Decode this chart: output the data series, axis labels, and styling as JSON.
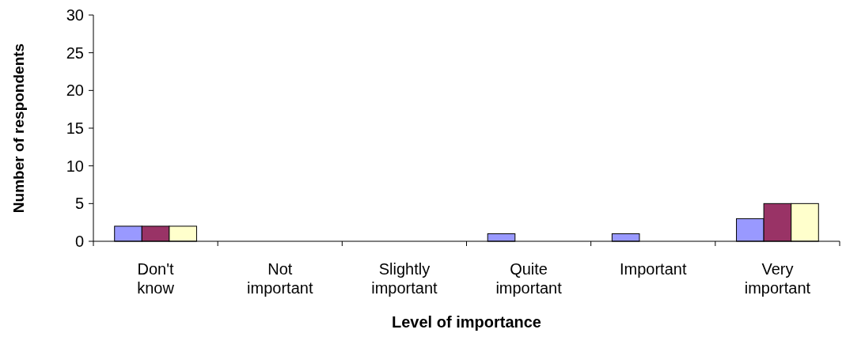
{
  "chart_data": {
    "type": "bar",
    "xlabel": "Level of importance",
    "ylabel": "Number of respondents",
    "categories": [
      "Don't know",
      "Not important",
      "Slightly important",
      "Quite important",
      "Important",
      "Very important"
    ],
    "series": [
      {
        "color": "#9999ff",
        "values": [
          2,
          0,
          0,
          1,
          1,
          3
        ]
      },
      {
        "color": "#993366",
        "values": [
          2,
          0,
          0,
          0,
          0,
          5
        ]
      },
      {
        "color": "#ffffcc",
        "values": [
          2,
          0,
          0,
          0,
          0,
          5
        ]
      }
    ],
    "ylim": [
      0,
      30
    ],
    "yticks": [
      0,
      5,
      10,
      15,
      20,
      25,
      30
    ],
    "grid": false
  }
}
